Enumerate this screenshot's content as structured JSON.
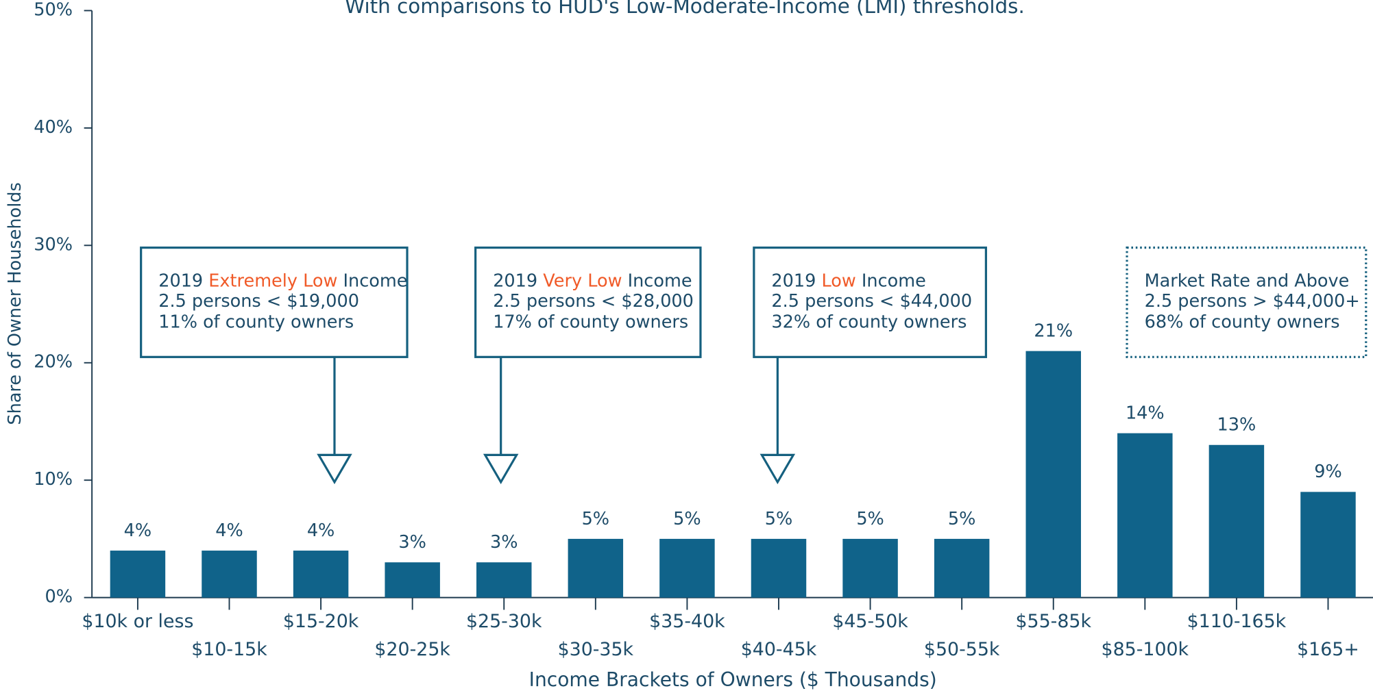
{
  "chart_data": {
    "type": "bar",
    "subtitle": "With comparisons to HUD's Low-Moderate-Income (LMI) thresholds.",
    "y_label": "Share of Owner Households",
    "x_label": "Income Brackets of Owners ($ Thousands)",
    "categories": [
      "$10k or less",
      "$10-15k",
      "$15-20k",
      "$20-25k",
      "$25-30k",
      "$30-35k",
      "$35-40k",
      "$40-45k",
      "$45-50k",
      "$50-55k",
      "$55-85k",
      "$85-100k",
      "$110-165k",
      "$165+"
    ],
    "values": [
      4,
      4,
      4,
      3,
      3,
      5,
      5,
      5,
      5,
      5,
      21,
      14,
      13,
      9
    ],
    "value_labels": [
      "4%",
      "4%",
      "4%",
      "3%",
      "3%",
      "5%",
      "5%",
      "5%",
      "5%",
      "5%",
      "21%",
      "14%",
      "13%",
      "9%"
    ],
    "color": "#10638a",
    "ylim": [
      0,
      50
    ],
    "yticks": [
      {
        "value": 0,
        "label": "0%"
      },
      {
        "value": 10,
        "label": "10%"
      },
      {
        "value": 20,
        "label": "20%"
      },
      {
        "value": 30,
        "label": "30%"
      },
      {
        "value": 40,
        "label": "40%"
      },
      {
        "value": 50,
        "label": "50%"
      }
    ],
    "annotations": [
      {
        "title_parts": [
          "2019 ",
          "Extremely Low",
          " Income"
        ],
        "lines": [
          "2.5 persons  <  $19,000",
          "11% of county owners"
        ]
      },
      {
        "title_parts": [
          "2019 ",
          "Very Low",
          " Income"
        ],
        "lines": [
          "2.5 persons  <  $28,000",
          "17% of county owners"
        ]
      },
      {
        "title_parts": [
          "2019 ",
          "Low",
          " Income"
        ],
        "lines": [
          "2.5 persons  <  $44,000",
          "32% of county owners"
        ]
      },
      {
        "title_parts": [
          "Market Rate and Above"
        ],
        "lines": [
          "2.5 persons  > $44,000+",
          "68% of county owners"
        ]
      }
    ]
  }
}
